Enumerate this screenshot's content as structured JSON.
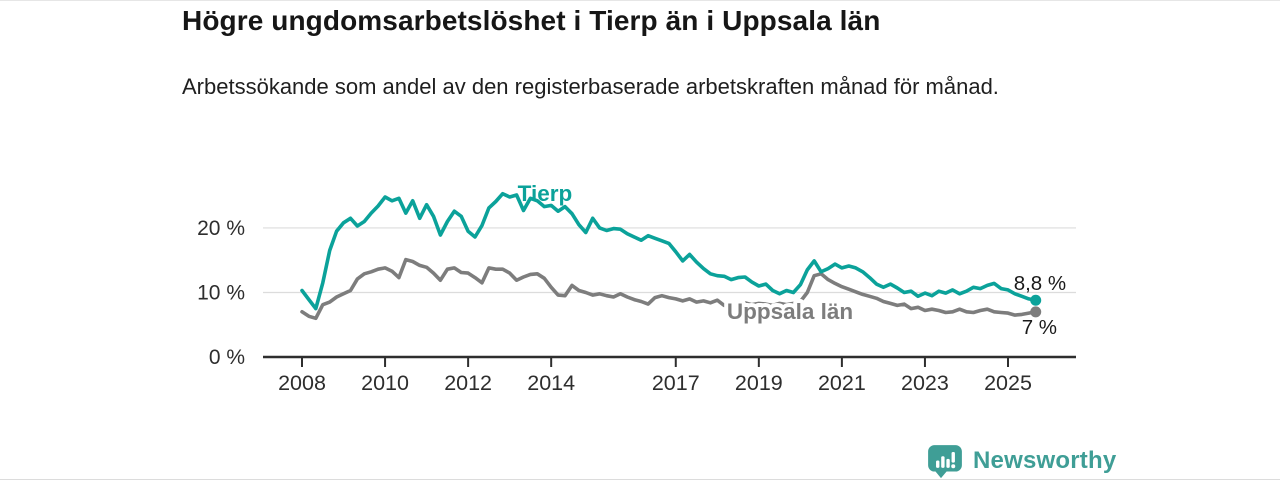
{
  "header": {
    "title": "Högre ungdomsarbetslöshet i Tierp än i Uppsala län",
    "subtitle": "Arbetssökande som andel av den registerbaserade arbetskraften månad för månad."
  },
  "footer": {
    "brand": "Newsworthy",
    "logo_icon": "speech-bubble-bar-chart-icon",
    "brand_color": "#3f9e96"
  },
  "chart_data": {
    "type": "line",
    "title": "",
    "xlabel": "",
    "ylabel": "",
    "x_start_year": 2008,
    "x_step_years": 0.16667,
    "x_end_year": 2025.67,
    "ylim": [
      0,
      27
    ],
    "grid": "horizontal",
    "legend_position": "inline-labels",
    "xticks": [
      2008,
      2010,
      2012,
      2014,
      2017,
      2019,
      2021,
      2023,
      2025
    ],
    "yticks": [
      {
        "value": 0,
        "label": "0 %"
      },
      {
        "value": 10,
        "label": "10 %"
      },
      {
        "value": 20,
        "label": "20 %"
      }
    ],
    "series": [
      {
        "id": "uppsala-lan",
        "name": "Uppsala län",
        "color": "#7d7d7d",
        "end_label": "7 %",
        "end_label_offset": [
          -14,
          22
        ],
        "label_at": {
          "year": 2019.75,
          "pct": 5.9
        },
        "halo": true,
        "values": [
          7.0,
          6.3,
          6.0,
          8.1,
          8.5,
          9.3,
          9.8,
          10.3,
          12.1,
          12.9,
          13.2,
          13.6,
          13.8,
          13.3,
          12.3,
          15.1,
          14.8,
          14.2,
          13.9,
          13.0,
          11.9,
          13.6,
          13.8,
          13.1,
          13.0,
          12.3,
          11.5,
          13.8,
          13.6,
          13.6,
          13.0,
          11.9,
          12.4,
          12.8,
          12.9,
          12.2,
          10.8,
          9.6,
          9.5,
          11.1,
          10.3,
          10.0,
          9.6,
          9.8,
          9.5,
          9.3,
          9.8,
          9.3,
          8.9,
          8.6,
          8.2,
          9.2,
          9.5,
          9.2,
          9.0,
          8.7,
          9.0,
          8.5,
          8.7,
          8.4,
          8.8,
          8.0,
          8.3,
          8.2,
          8.4,
          8.1,
          8.3,
          8.2,
          8.0,
          8.3,
          8.1,
          8.3,
          8.6,
          10.0,
          12.6,
          12.9,
          12.0,
          11.4,
          10.9,
          10.5,
          10.1,
          9.7,
          9.4,
          9.1,
          8.6,
          8.3,
          8.0,
          8.2,
          7.5,
          7.7,
          7.2,
          7.4,
          7.2,
          6.9,
          7.0,
          7.4,
          7.0,
          6.9,
          7.2,
          7.4,
          7.0,
          6.9,
          6.8,
          6.5,
          6.6,
          6.8,
          7.0
        ]
      },
      {
        "id": "tierp",
        "name": "Tierp",
        "color": "#0ba29a",
        "end_label": "8,8 %",
        "end_label_offset": [
          -22,
          -10
        ],
        "label_at": {
          "year": 2013.85,
          "pct": 24.2
        },
        "halo": false,
        "values": [
          10.3,
          8.9,
          7.5,
          11.5,
          16.5,
          19.5,
          20.8,
          21.5,
          20.3,
          21.0,
          22.3,
          23.4,
          24.8,
          24.2,
          24.6,
          22.3,
          24.2,
          21.5,
          23.6,
          21.8,
          18.9,
          21.0,
          22.6,
          21.8,
          19.5,
          18.6,
          20.4,
          23.1,
          24.1,
          25.3,
          24.8,
          25.1,
          22.7,
          24.6,
          24.2,
          23.3,
          23.5,
          22.6,
          23.3,
          22.2,
          20.5,
          19.3,
          21.5,
          20.0,
          19.6,
          19.9,
          19.8,
          19.1,
          18.6,
          18.1,
          18.8,
          18.4,
          18.0,
          17.6,
          16.3,
          14.9,
          15.9,
          14.7,
          13.7,
          12.9,
          12.6,
          12.5,
          12.0,
          12.3,
          12.4,
          11.6,
          11.0,
          11.3,
          10.3,
          9.8,
          10.3,
          10.0,
          11.2,
          13.5,
          14.9,
          13.2,
          13.7,
          14.4,
          13.8,
          14.1,
          13.8,
          13.2,
          12.3,
          11.3,
          10.8,
          11.3,
          10.7,
          10.0,
          10.2,
          9.4,
          9.9,
          9.5,
          10.2,
          9.9,
          10.4,
          9.8,
          10.2,
          10.8,
          10.6,
          11.1,
          11.4,
          10.6,
          10.4,
          9.8,
          9.4,
          9.0,
          8.8
        ]
      }
    ]
  }
}
